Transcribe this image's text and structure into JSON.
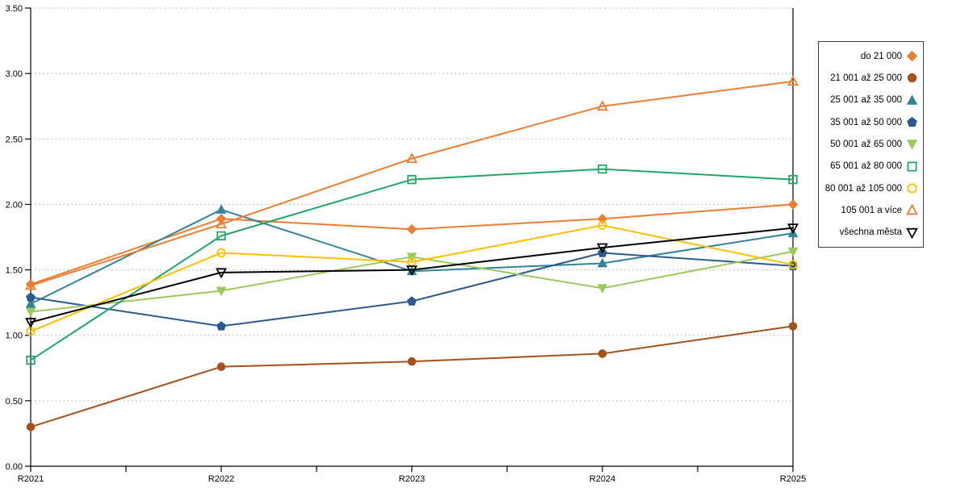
{
  "chart_data": {
    "type": "line",
    "title": "",
    "xlabel": "",
    "ylabel": "",
    "x": [
      "R2021",
      "R2022",
      "R2023",
      "R2024",
      "R2025"
    ],
    "ylim": [
      0,
      3.5
    ],
    "ytick_step": 0.5,
    "ytick_labels": [
      "0.00",
      "0.50",
      "1.00",
      "1.50",
      "2.00",
      "2.50",
      "3.00",
      "3.50"
    ],
    "grid": "horizontal-dotted",
    "gridline_color": "#bfbfbf",
    "axis_color": "#000000",
    "legend_position": "right",
    "series": [
      {
        "name": "do 21 000",
        "marker": "diamond",
        "filled": true,
        "color": "#ED7D31",
        "values": [
          1.39,
          1.89,
          1.81,
          1.89,
          2.0
        ]
      },
      {
        "name": "21 001 až 25 000",
        "marker": "circle",
        "filled": true,
        "color": "#A5511C",
        "values": [
          0.3,
          0.76,
          0.8,
          0.86,
          1.07
        ]
      },
      {
        "name": "25 001 až 35 000",
        "marker": "triangle-up",
        "filled": true,
        "color": "#31849B",
        "values": [
          1.24,
          1.96,
          1.49,
          1.55,
          1.78
        ]
      },
      {
        "name": "35 001 až 50 000",
        "marker": "pentagon",
        "filled": true,
        "color": "#2B5B8E",
        "values": [
          1.29,
          1.07,
          1.26,
          1.63,
          1.53
        ]
      },
      {
        "name": "50 001 až 65 000",
        "marker": "triangle-down",
        "filled": true,
        "color": "#9CC95C",
        "values": [
          1.18,
          1.34,
          1.6,
          1.36,
          1.64
        ]
      },
      {
        "name": "65 001 až 80 000",
        "marker": "square",
        "filled": false,
        "color": "#23A566",
        "values": [
          0.81,
          1.76,
          2.19,
          2.27,
          2.19
        ]
      },
      {
        "name": "80 001 až 105 000",
        "marker": "circle",
        "filled": false,
        "color": "#FFC000",
        "values": [
          1.03,
          1.63,
          1.56,
          1.84,
          1.54
        ]
      },
      {
        "name": "105 001 a více",
        "marker": "triangle-up",
        "filled": false,
        "color": "#ED7D31",
        "values": [
          1.38,
          1.85,
          2.35,
          2.75,
          2.94
        ]
      },
      {
        "name": "všechna města",
        "marker": "triangle-down",
        "filled": false,
        "color": "#000000",
        "values": [
          1.1,
          1.48,
          1.5,
          1.67,
          1.82
        ]
      }
    ]
  }
}
